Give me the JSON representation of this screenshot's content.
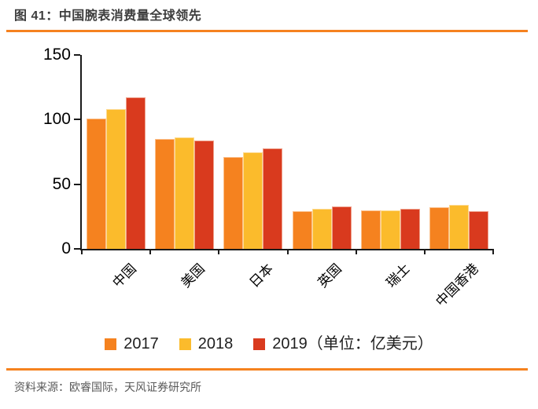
{
  "page": {
    "title": "图 41：中国腕表消费量全球领先",
    "source_note": "资料来源：欧睿国际，天风证券研究所"
  },
  "colors": {
    "accent_rule": "#F5821F",
    "axis": "#1A1A1A",
    "title_text": "#3D3D3D",
    "source_text": "#595959",
    "tick_label": "#000000",
    "legend_text": "#1F1F1F"
  },
  "chart_data": {
    "type": "bar",
    "title": "中国腕表消费量全球领先",
    "unit": "亿美元",
    "categories": [
      "中国",
      "美国",
      "日本",
      "英国",
      "瑞士",
      "中国香港"
    ],
    "series": [
      {
        "name": "2017",
        "color": "#F5821F",
        "values": [
          101,
          85,
          71,
          29,
          30,
          32
        ]
      },
      {
        "name": "2018",
        "color": "#FBBB2C",
        "values": [
          108,
          86,
          75,
          31,
          30,
          34
        ]
      },
      {
        "name": "2019",
        "color": "#D93A1E",
        "values": [
          117,
          84,
          78,
          33,
          31,
          29
        ]
      }
    ],
    "legend_labels": [
      "2017",
      "2018",
      "2019（单位：亿美元）"
    ],
    "legend_position": "bottom",
    "xlabel": "",
    "ylabel": "",
    "y_ticks": [
      0,
      50,
      100,
      150
    ],
    "ylim": [
      0,
      150
    ],
    "grid": false,
    "x_tick_rotation": -45
  }
}
